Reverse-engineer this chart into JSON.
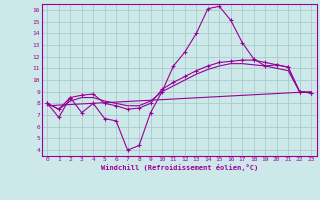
{
  "xlabel": "Windchill (Refroidissement éolien,°C)",
  "background_color": "#cce8e8",
  "grid_color": "#aacccc",
  "line_color": "#990099",
  "xlim": [
    -0.5,
    23.5
  ],
  "ylim": [
    3.5,
    16.5
  ],
  "yticks": [
    4,
    5,
    6,
    7,
    8,
    9,
    10,
    11,
    12,
    13,
    14,
    15,
    16
  ],
  "xticks": [
    0,
    1,
    2,
    3,
    4,
    5,
    6,
    7,
    8,
    9,
    10,
    11,
    12,
    13,
    14,
    15,
    16,
    17,
    18,
    19,
    20,
    21,
    22,
    23
  ],
  "line_zigzag_x": [
    0,
    1,
    2,
    3,
    4,
    5,
    6,
    7,
    8,
    9,
    10,
    11,
    12,
    13,
    14,
    15,
    16,
    17,
    18,
    19,
    20,
    21,
    22,
    23
  ],
  "line_zigzag_y": [
    8.0,
    6.8,
    8.5,
    7.2,
    8.0,
    6.7,
    6.5,
    4.0,
    4.4,
    7.2,
    9.0,
    11.2,
    12.4,
    14.0,
    16.1,
    16.3,
    15.1,
    13.2,
    11.8,
    11.2,
    11.3,
    11.1,
    9.0,
    8.9
  ],
  "line_smooth_x": [
    0,
    1,
    2,
    3,
    4,
    5,
    6,
    7,
    8,
    9,
    10,
    11,
    12,
    13,
    14,
    15,
    16,
    17,
    18,
    19,
    20,
    21,
    22,
    23
  ],
  "line_smooth_y": [
    8.0,
    7.5,
    8.5,
    8.7,
    8.8,
    8.0,
    7.8,
    7.5,
    7.6,
    8.0,
    9.2,
    9.8,
    10.3,
    10.8,
    11.2,
    11.5,
    11.6,
    11.7,
    11.7,
    11.5,
    11.3,
    11.1,
    9.0,
    8.9
  ],
  "line_curve_x": [
    0,
    1,
    2,
    3,
    4,
    5,
    6,
    7,
    8,
    9,
    10,
    11,
    12,
    13,
    14,
    15,
    16,
    17,
    18,
    19,
    20,
    21,
    22,
    23
  ],
  "line_curve_y": [
    8.0,
    7.5,
    8.2,
    8.5,
    8.5,
    8.2,
    8.0,
    7.8,
    7.8,
    8.2,
    9.0,
    9.5,
    10.0,
    10.5,
    10.9,
    11.2,
    11.4,
    11.4,
    11.3,
    11.2,
    11.0,
    10.8,
    9.0,
    8.9
  ],
  "line_trend_x": [
    0,
    23
  ],
  "line_trend_y": [
    7.8,
    9.0
  ]
}
